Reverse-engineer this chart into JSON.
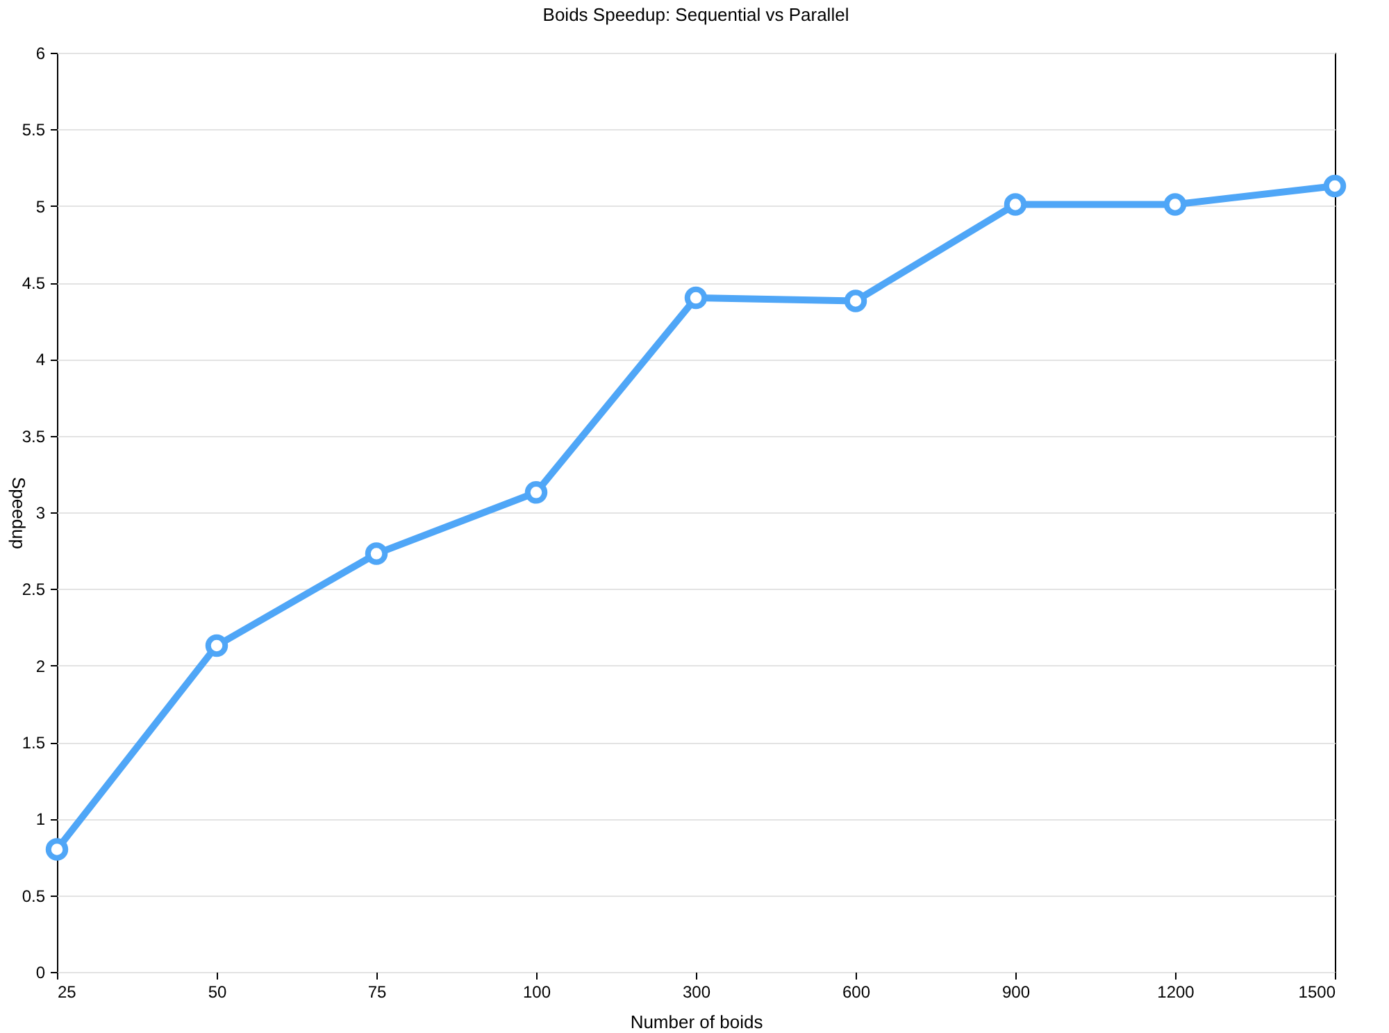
{
  "chart_data": {
    "type": "line",
    "title": "Boids Speedup: Sequential vs Parallel",
    "xlabel": "Number of boids",
    "ylabel": "Speedup",
    "categories": [
      "25",
      "50",
      "75",
      "100",
      "300",
      "600",
      "900",
      "1200",
      "1500"
    ],
    "series": [
      {
        "color": "#4fa6f7",
        "values": [
          0.8,
          2.13,
          2.73,
          3.13,
          4.4,
          4.38,
          5.01,
          5.01,
          5.13
        ]
      }
    ],
    "ylim": [
      0,
      6
    ],
    "yticks": [
      0,
      0.5,
      1,
      1.5,
      2,
      2.5,
      3,
      3.5,
      4,
      4.5,
      5,
      5.5,
      6
    ],
    "grid": "y",
    "marker": "circle",
    "line_style": "solid"
  }
}
